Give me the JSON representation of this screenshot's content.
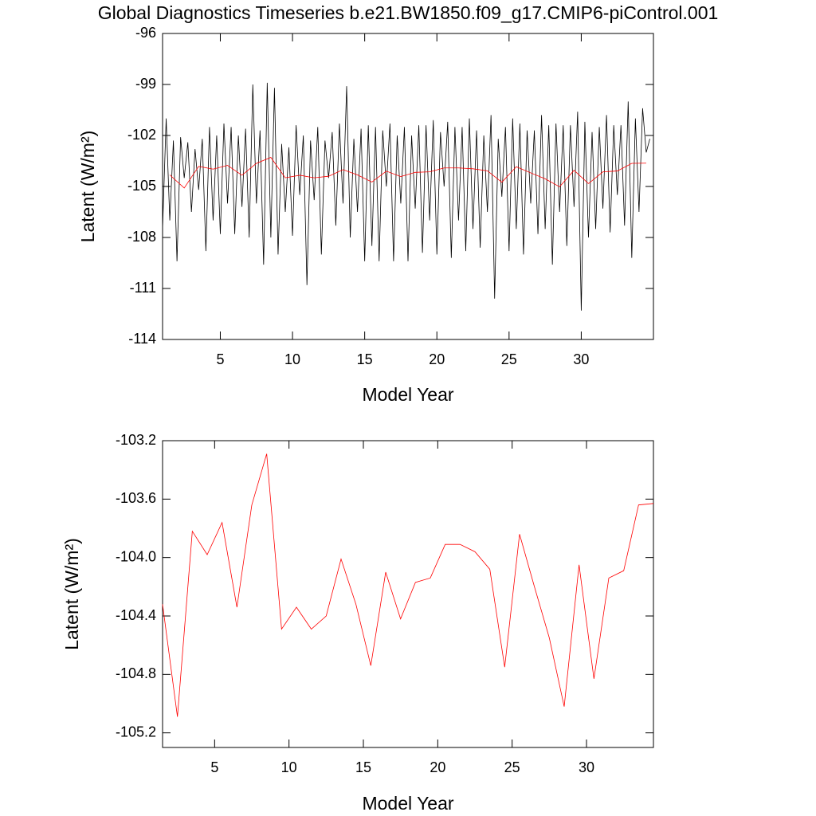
{
  "chart_data": [
    {
      "type": "line",
      "title": "Global Diagnostics Timeseries b.e21.BW1850.f09_g17.CMIP6-piControl.001",
      "x_label": "Model Year",
      "y_label": "Latent (W/m²)",
      "xlim": [
        1,
        35
      ],
      "xticks": [
        5,
        10,
        15,
        20,
        25,
        30
      ],
      "ylim": [
        -114,
        -96
      ],
      "yticks": [
        -96,
        -99,
        -102,
        -105,
        -108,
        -111,
        -114
      ],
      "series": [
        {
          "color": "#000000",
          "x": [
            1,
            1.25,
            1.5,
            1.75,
            2,
            2.25,
            2.5,
            2.75,
            3,
            3.25,
            3.5,
            3.75,
            4,
            4.25,
            4.5,
            4.75,
            5,
            5.25,
            5.5,
            5.75,
            6,
            6.25,
            6.5,
            6.75,
            7,
            7.25,
            7.5,
            7.75,
            8,
            8.25,
            8.5,
            8.75,
            9,
            9.25,
            9.5,
            9.75,
            10,
            10.25,
            10.5,
            10.75,
            11,
            11.25,
            11.5,
            11.75,
            12,
            12.25,
            12.5,
            12.75,
            13,
            13.25,
            13.5,
            13.75,
            14,
            14.25,
            14.5,
            14.75,
            15,
            15.25,
            15.5,
            15.75,
            16,
            16.25,
            16.5,
            16.75,
            17,
            17.25,
            17.5,
            17.75,
            18,
            18.25,
            18.5,
            18.75,
            19,
            19.25,
            19.5,
            19.75,
            20,
            20.25,
            20.5,
            20.75,
            21,
            21.25,
            21.5,
            21.75,
            22,
            22.25,
            22.5,
            22.75,
            23,
            23.25,
            23.5,
            23.75,
            24,
            24.25,
            24.5,
            24.75,
            25,
            25.25,
            25.5,
            25.75,
            26,
            26.25,
            26.5,
            26.75,
            27,
            27.25,
            27.5,
            27.75,
            28,
            28.25,
            28.5,
            28.75,
            29,
            29.25,
            29.5,
            29.75,
            30,
            30.25,
            30.5,
            30.75,
            31,
            31.25,
            31.5,
            31.75,
            32,
            32.25,
            32.5,
            32.75,
            33,
            33.25,
            33.5,
            33.75,
            34,
            34.25,
            34.5,
            34.75
          ],
          "values": [
            -107.5,
            -101.0,
            -107.0,
            -102.3,
            -109.4,
            -102.1,
            -104.5,
            -102.4,
            -106.5,
            -102.8,
            -105.2,
            -102.2,
            -108.8,
            -101.5,
            -107.0,
            -102.0,
            -107.8,
            -101.3,
            -106.0,
            -101.5,
            -107.8,
            -102.0,
            -106.2,
            -101.6,
            -108.0,
            -99.0,
            -106.0,
            -101.7,
            -109.6,
            -98.9,
            -108.0,
            -99.2,
            -109.0,
            -102.5,
            -106.5,
            -102.7,
            -107.9,
            -101.4,
            -105.5,
            -102.0,
            -110.8,
            -102.3,
            -105.8,
            -101.5,
            -109.0,
            -102.3,
            -104.5,
            -101.8,
            -107.3,
            -101.3,
            -106.0,
            -99.1,
            -108.0,
            -102.2,
            -106.5,
            -101.6,
            -109.4,
            -101.4,
            -108.5,
            -101.5,
            -109.4,
            -101.7,
            -105.0,
            -101.3,
            -109.4,
            -102.0,
            -106.0,
            -101.5,
            -109.4,
            -102.0,
            -106.3,
            -101.4,
            -108.9,
            -101.4,
            -107.0,
            -101.1,
            -109.0,
            -101.8,
            -105.0,
            -101.2,
            -109.2,
            -101.5,
            -107.0,
            -101.5,
            -108.8,
            -101.0,
            -107.5,
            -101.7,
            -108.6,
            -102.0,
            -106.5,
            -100.8,
            -111.6,
            -102.2,
            -105.6,
            -101.5,
            -108.8,
            -101.0,
            -107.5,
            -101.3,
            -109.0,
            -101.7,
            -106.0,
            -101.7,
            -107.8,
            -100.8,
            -107.5,
            -101.4,
            -109.6,
            -101.3,
            -106.5,
            -101.4,
            -108.5,
            -101.4,
            -106.2,
            -100.6,
            -112.3,
            -101.2,
            -108.0,
            -101.8,
            -107.5,
            -101.5,
            -106.3,
            -100.8,
            -107.7,
            -101.4,
            -105.5,
            -101.4,
            -107.3,
            -100.0,
            -109.2,
            -101.0,
            -106.5,
            -100.4,
            -103.0,
            -102.2
          ]
        },
        {
          "color": "#ff0000",
          "x": [
            1.5,
            2.5,
            3.5,
            4.5,
            5.5,
            6.5,
            7.5,
            8.5,
            9.5,
            10.5,
            11.5,
            12.5,
            13.5,
            14.5,
            15.5,
            16.5,
            17.5,
            18.5,
            19.5,
            20.5,
            21.5,
            22.5,
            23.5,
            24.5,
            25.5,
            26.5,
            27.5,
            28.5,
            29.5,
            30.5,
            31.5,
            32.5,
            33.5,
            34.5
          ],
          "values": [
            -104.32,
            -105.09,
            -103.82,
            -103.98,
            -103.76,
            -104.34,
            -103.64,
            -103.29,
            -104.49,
            -104.34,
            -104.49,
            -104.4,
            -104.01,
            -104.32,
            -104.74,
            -104.1,
            -104.42,
            -104.17,
            -104.14,
            -103.91,
            -103.91,
            -103.96,
            -104.08,
            -104.75,
            -103.84,
            -104.2,
            -104.55,
            -105.02,
            -104.05,
            -104.83,
            -104.14,
            -104.09,
            -103.64,
            -103.63
          ]
        }
      ]
    },
    {
      "type": "line",
      "x_label": "Model Year",
      "y_label": "Latent (W/m²)",
      "xlim": [
        1.5,
        34.5
      ],
      "xticks": [
        5,
        10,
        15,
        20,
        25,
        30
      ],
      "ylim": [
        -105.3,
        -103.2
      ],
      "yticks": [
        -103.2,
        -103.6,
        {
          "value": -104,
          "label": "-104.0"
        },
        -104.4,
        -104.8,
        -105.2
      ],
      "series": [
        {
          "color": "#ff0000",
          "x": [
            1.5,
            2.5,
            3.5,
            4.5,
            5.5,
            6.5,
            7.5,
            8.5,
            9.5,
            10.5,
            11.5,
            12.5,
            13.5,
            14.5,
            15.5,
            16.5,
            17.5,
            18.5,
            19.5,
            20.5,
            21.5,
            22.5,
            23.5,
            24.5,
            25.5,
            26.5,
            27.5,
            28.5,
            29.5,
            30.5,
            31.5,
            32.5,
            33.5,
            34.5
          ],
          "values": [
            -104.32,
            -105.09,
            -103.82,
            -103.98,
            -103.76,
            -104.34,
            -103.64,
            -103.29,
            -104.49,
            -104.34,
            -104.49,
            -104.4,
            -104.01,
            -104.32,
            -104.74,
            -104.1,
            -104.42,
            -104.17,
            -104.14,
            -103.91,
            -103.91,
            -103.96,
            -104.08,
            -104.75,
            -103.84,
            -104.2,
            -104.55,
            -105.02,
            -104.05,
            -104.83,
            -104.14,
            -104.09,
            -103.64,
            -103.63
          ]
        }
      ]
    }
  ]
}
